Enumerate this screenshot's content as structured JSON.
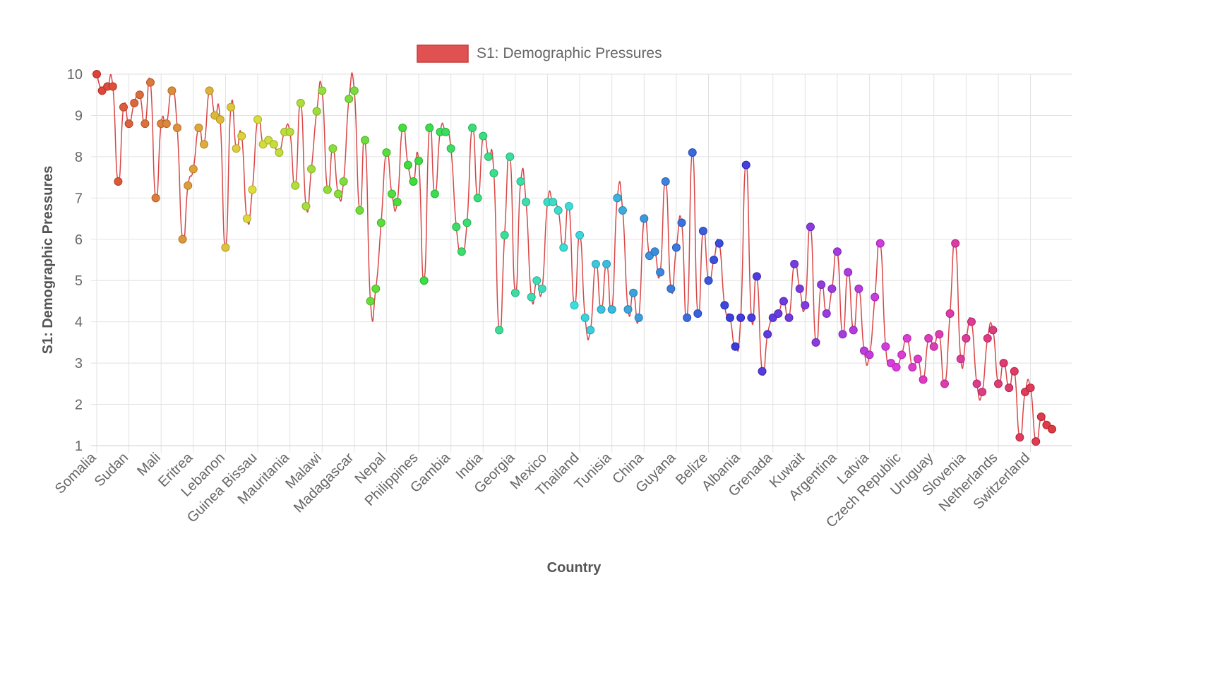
{
  "chart_data": {
    "type": "line",
    "title": "",
    "legend": {
      "label": "S1: Demographic Pressures",
      "position": "top",
      "swatch_color": "#e05252"
    },
    "xlabel": "Country",
    "ylabel": "S1: Demographic Pressures",
    "ylim": [
      1,
      10
    ],
    "yticks": [
      1,
      2,
      3,
      4,
      5,
      6,
      7,
      8,
      9,
      10
    ],
    "grid": true,
    "line_color": "#d94646",
    "point_colors": "rainbow gradient from red through orange, yellow, green, cyan, blue, purple, magenta back to red",
    "x_tick_labels": [
      "Somalia",
      "Sudan",
      "Mali",
      "Eritrea",
      "Lebanon",
      "Guinea Bissau",
      "Mauritania",
      "Malawi",
      "Madagascar",
      "Nepal",
      "Philippines",
      "Gambia",
      "India",
      "Georgia",
      "Mexico",
      "Thailand",
      "Tunisia",
      "China",
      "Guyana",
      "Belize",
      "Albania",
      "Grenada",
      "Kuwait",
      "Argentina",
      "Latvia",
      "Czech Republic",
      "Uruguay",
      "Slovenia",
      "Netherlands",
      "Switzerland"
    ],
    "x_tick_step": 6,
    "series": [
      {
        "name": "S1: Demographic Pressures",
        "values": [
          10.0,
          9.6,
          9.7,
          9.7,
          7.4,
          9.2,
          8.8,
          9.3,
          9.5,
          8.8,
          9.8,
          7.0,
          8.8,
          8.8,
          9.6,
          8.7,
          6.0,
          7.3,
          7.7,
          8.7,
          8.3,
          9.6,
          9.0,
          8.9,
          5.8,
          9.2,
          8.2,
          8.5,
          6.5,
          7.2,
          8.9,
          8.3,
          8.4,
          8.3,
          8.1,
          8.6,
          8.6,
          7.3,
          9.3,
          6.8,
          7.7,
          9.1,
          9.6,
          7.2,
          8.2,
          7.1,
          7.4,
          9.4,
          9.6,
          6.7,
          8.4,
          4.5,
          4.8,
          6.4,
          8.1,
          7.1,
          6.9,
          8.7,
          7.8,
          7.4,
          7.9,
          5.0,
          8.7,
          7.1,
          8.6,
          8.6,
          8.2,
          6.3,
          5.7,
          6.4,
          8.7,
          7.0,
          8.5,
          8.0,
          7.6,
          3.8,
          6.1,
          8.0,
          4.7,
          7.4,
          6.9,
          4.6,
          5.0,
          4.8,
          6.9,
          6.9,
          6.7,
          5.8,
          6.8,
          4.4,
          6.1,
          4.1,
          3.8,
          5.4,
          4.3,
          5.4,
          4.3,
          7.0,
          6.7,
          4.3,
          4.7,
          4.1,
          6.5,
          5.6,
          5.7,
          5.2,
          7.4,
          4.8,
          5.8,
          6.4,
          4.1,
          8.1,
          4.2,
          6.2,
          5.0,
          5.5,
          5.9,
          4.4,
          4.1,
          3.4,
          4.1,
          7.8,
          4.1,
          5.1,
          2.8,
          3.7,
          4.1,
          4.2,
          4.5,
          4.1,
          5.4,
          4.8,
          4.4,
          6.3,
          3.5,
          4.9,
          4.2,
          4.8,
          5.7,
          3.7,
          5.2,
          3.8,
          4.8,
          3.3,
          3.2,
          4.6,
          5.9,
          3.4,
          3.0,
          2.9,
          3.2,
          3.6,
          2.9,
          3.1,
          2.6,
          3.6,
          3.4,
          3.7,
          2.5,
          4.2,
          5.9,
          3.1,
          3.6,
          4.0,
          2.5,
          2.3,
          3.6,
          3.8,
          2.5,
          3.0,
          2.4,
          2.8,
          1.2,
          2.3,
          2.4,
          1.1,
          1.7,
          1.5,
          1.4
        ]
      }
    ]
  }
}
